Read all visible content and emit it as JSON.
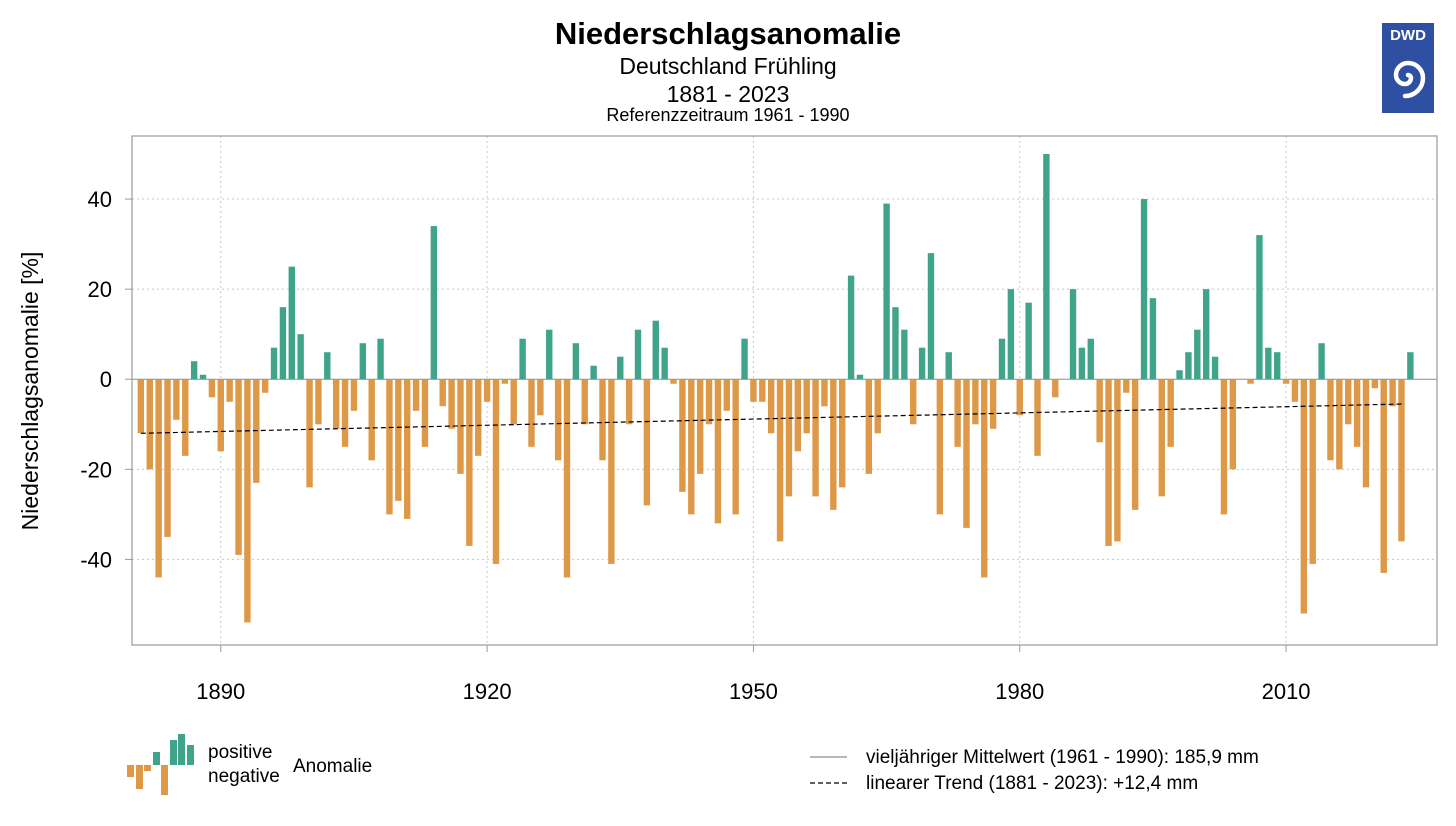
{
  "header": {
    "title": "Niederschlagsanomalie",
    "subtitle": "Deutschland Frühling",
    "period": "1881 - 2023",
    "reference": "Referenzzeitraum 1961 - 1990"
  },
  "logo": {
    "text": "DWD",
    "icon": "dwd-swirl-logo",
    "color": "#2f4fa2"
  },
  "colors": {
    "positive": "#3fa489",
    "negative": "#dd9848",
    "trend": "#000000",
    "grid": "#c8c8c8",
    "axis": "#999999"
  },
  "legend": {
    "positive_label": "positive",
    "negative_label": "negative",
    "anomaly_label": "Anomalie",
    "mean_label": "vieljähriger Mittelwert (1961 - 1990): 185,9 mm",
    "trend_label": "linearer Trend (1881 - 2023): +12,4 mm"
  },
  "chart_data": {
    "type": "bar",
    "title": "Niederschlagsanomalie",
    "subtitle": "Deutschland Frühling",
    "ylabel": "Niederschlagsanomalie [%]",
    "xlabel": "",
    "x_start": 1881,
    "x_end": 2023,
    "xlim": [
      1880,
      2027
    ],
    "ylim": [
      -59,
      54
    ],
    "xticks": [
      1890,
      1920,
      1950,
      1980,
      2010
    ],
    "yticks": [
      -40,
      -20,
      0,
      20,
      40
    ],
    "grid": true,
    "values": [
      -12,
      -20,
      -44,
      -35,
      -9,
      -17,
      4,
      1,
      -4,
      -16,
      -5,
      -39,
      -54,
      -23,
      -3,
      7,
      16,
      25,
      10,
      -24,
      -10,
      6,
      -11,
      -15,
      -7,
      8,
      -18,
      9,
      -30,
      -27,
      -31,
      -7,
      -15,
      34,
      -6,
      -11,
      -21,
      -37,
      -17,
      -5,
      -41,
      -1,
      -10,
      9,
      -15,
      -8,
      11,
      -18,
      -44,
      8,
      -10,
      3,
      -18,
      -41,
      5,
      -10,
      11,
      -28,
      13,
      7,
      -1,
      -25,
      -30,
      -21,
      -10,
      -32,
      -7,
      -30,
      9,
      -5,
      -5,
      -12,
      -36,
      -26,
      -16,
      -12,
      -26,
      -6,
      -29,
      -24,
      23,
      1,
      -21,
      -12,
      39,
      16,
      11,
      -10,
      7,
      28,
      -30,
      6,
      -15,
      -33,
      -10,
      -44,
      -11,
      9,
      20,
      -8,
      17,
      -17,
      50,
      -4,
      0,
      20,
      7,
      9,
      -14,
      -37,
      -36,
      -3,
      -29,
      40,
      18,
      -26,
      -15,
      2,
      6,
      11,
      20,
      5,
      -30,
      -20,
      0,
      -1,
      32,
      7,
      6,
      -1,
      -5,
      -52,
      -41,
      8,
      -18,
      -20,
      -10,
      -15,
      -24,
      -2,
      -43,
      -6,
      -36,
      6
    ],
    "trend": {
      "start": -12,
      "end": -5.5
    },
    "legend_position": "bottom"
  }
}
